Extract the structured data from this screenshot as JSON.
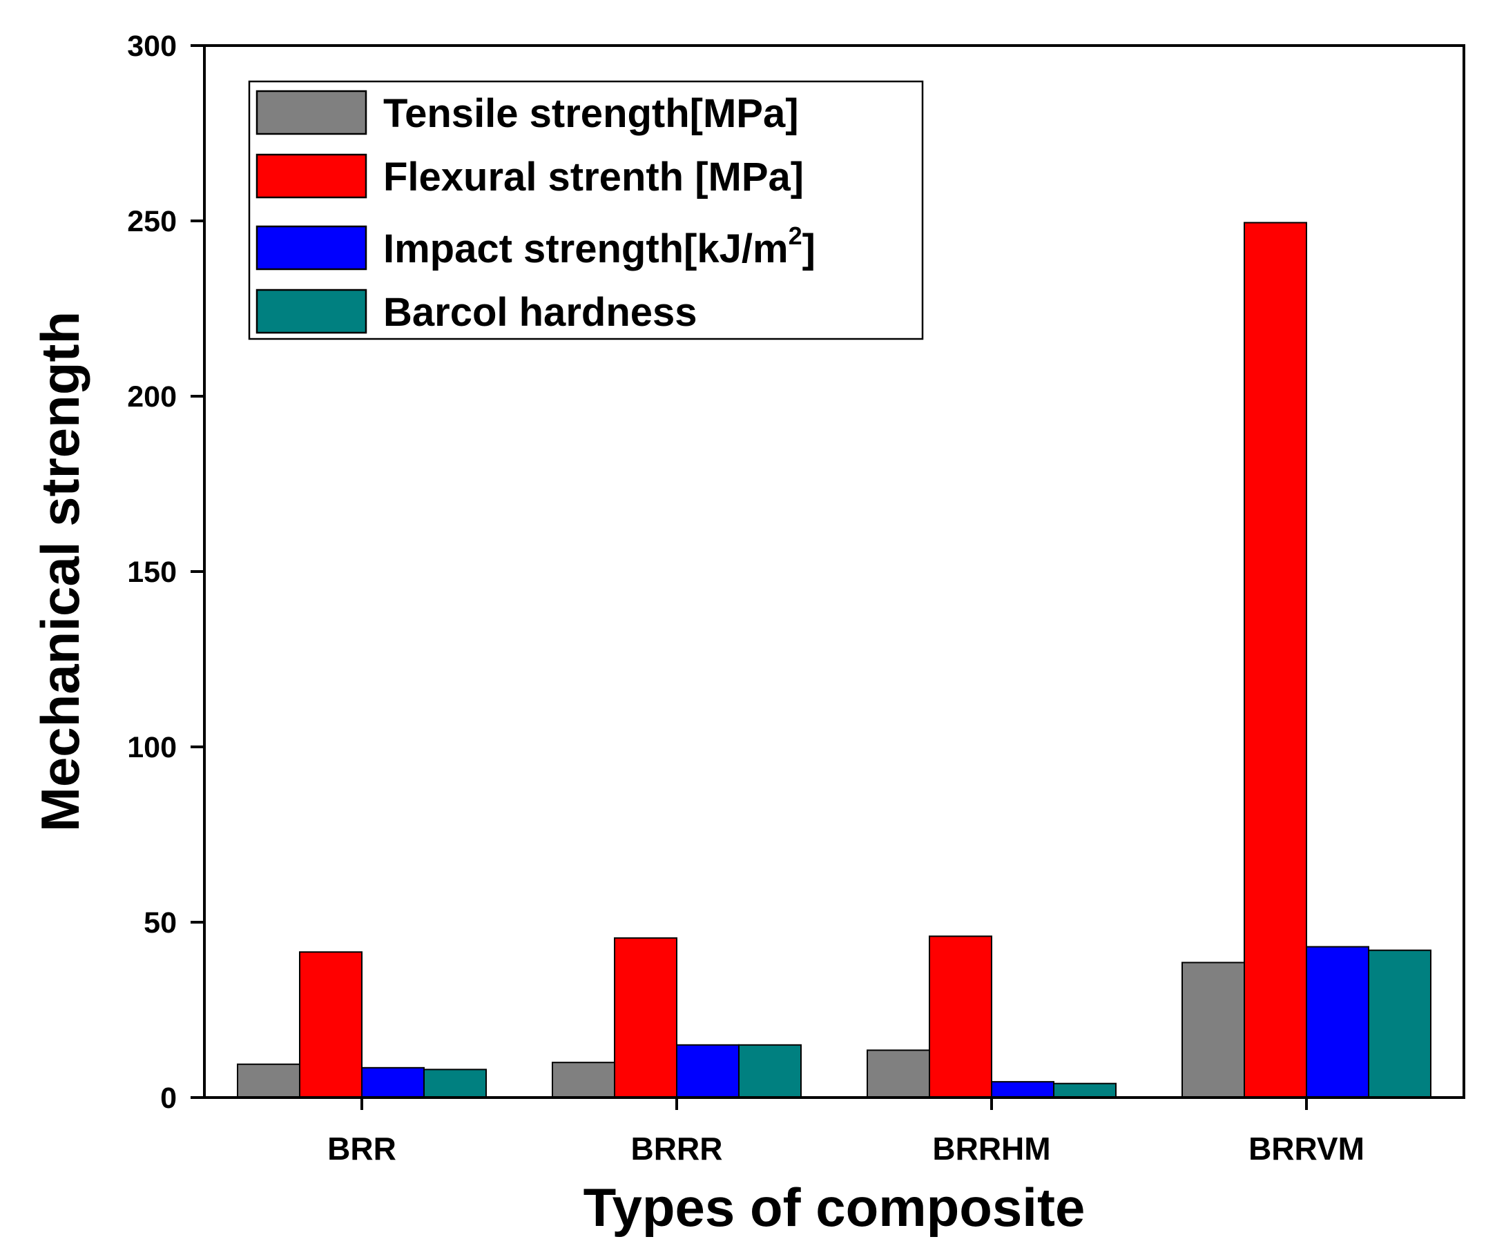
{
  "chart_data": {
    "type": "bar",
    "title": "",
    "xlabel": "Types of composite",
    "ylabel": "Mechanical strength",
    "ylim": [
      0,
      300
    ],
    "yticks": [
      "0",
      "50",
      "100",
      "150",
      "200",
      "250",
      "300"
    ],
    "grid": false,
    "legend_position": "top-left",
    "categories": [
      "BRR",
      "BRRR",
      "BRRHM",
      "BRRVM"
    ],
    "series": [
      {
        "name": "Tensile strength[MPa]",
        "label_main": "Tensile strength[MPa]",
        "color": "#808080",
        "values": [
          9.5,
          10,
          13.5,
          38.5
        ]
      },
      {
        "name": "Flexural strenth [MPa]",
        "label_main": "Flexural strenth [MPa]",
        "color": "#ff0000",
        "values": [
          41.5,
          45.5,
          46,
          249.5
        ]
      },
      {
        "name": "Impact strength[kJ/m2]",
        "label_main": "Impact strength[kJ/m",
        "label_sup": "2",
        "label_end": "]",
        "color": "#0000ff",
        "values": [
          8.5,
          15,
          4.5,
          43
        ]
      },
      {
        "name": "Barcol hardness",
        "label_main": "Barcol hardness",
        "color": "#008080",
        "values": [
          8,
          15,
          4,
          42
        ]
      }
    ]
  }
}
